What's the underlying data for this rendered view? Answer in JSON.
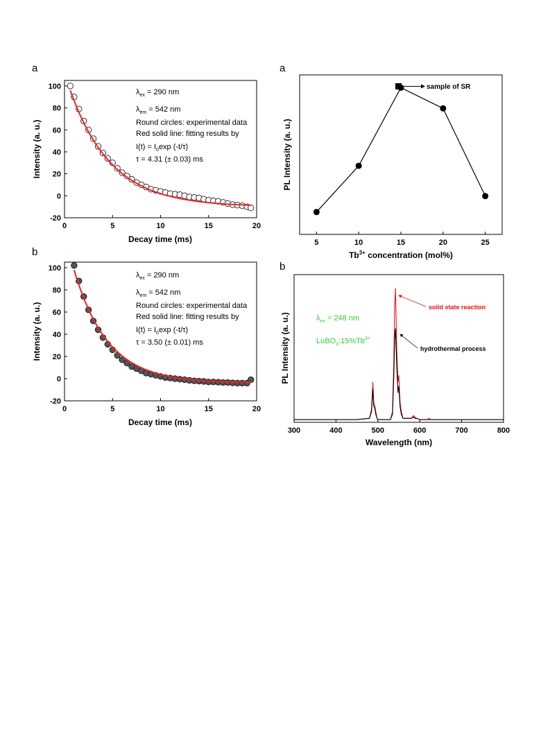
{
  "chart_data": [
    {
      "id": "decay-a",
      "panel_label": "a",
      "type": "scatter",
      "xlabel": "Decay time (ms)",
      "ylabel": "Intensity (a. u.)",
      "xlim": [
        0,
        20
      ],
      "ylim": [
        -20,
        105
      ],
      "xticks": [
        "0",
        "5",
        "10",
        "15",
        "20"
      ],
      "yticks": [
        "-20",
        "0",
        "20",
        "40",
        "60",
        "80",
        "100"
      ],
      "xtick_values": [
        0,
        5,
        10,
        15,
        20
      ],
      "ytick_values": [
        -20,
        0,
        20,
        40,
        60,
        80,
        100
      ],
      "grid": false,
      "annotations": [
        "λex = 290 nm",
        "λem = 542 nm",
        "Round circles: experimental data",
        "Red solid line: fitting results by",
        "I(t) = I0exp (-t/τ)",
        "τ = 4.31 (± 0.03) ms"
      ],
      "fit": {
        "model": "I(t) = I0exp (-t/τ)",
        "tau_ms": 4.31,
        "x_start": 0.6,
        "x_end": 19.4,
        "y_start": 96,
        "y_end": -10
      },
      "series": [
        {
          "name": "Round circles: experimental data",
          "color": "#ffffff",
          "stroke": "#333333",
          "x": [
            0.6,
            1.0,
            1.5,
            2.0,
            2.5,
            3.0,
            3.5,
            4.0,
            4.5,
            5.0,
            5.5,
            6.0,
            6.5,
            7.0,
            7.5,
            8.0,
            8.5,
            9.0,
            9.5,
            10.0,
            10.5,
            11.0,
            11.5,
            12.0,
            12.5,
            13.0,
            13.5,
            14.0,
            14.5,
            15.0,
            15.5,
            16.0,
            16.5,
            17.0,
            17.5,
            18.0,
            18.5,
            19.0,
            19.4
          ],
          "y": [
            100,
            90,
            79,
            68,
            60,
            52,
            45,
            39,
            34,
            30,
            25,
            21,
            18,
            15,
            12,
            10,
            8,
            6,
            5,
            4,
            3,
            2,
            1.5,
            1,
            0,
            -1,
            -1.5,
            -2,
            -3,
            -4,
            -4.5,
            -5,
            -6,
            -7,
            -8,
            -8.5,
            -9,
            -10,
            -11
          ]
        }
      ],
      "fit_color": "#ee2222"
    },
    {
      "id": "decay-b",
      "panel_label": "b",
      "type": "scatter",
      "xlabel": "Decay time (ms)",
      "ylabel": "Intensity (a. u.)",
      "xlim": [
        0,
        20
      ],
      "ylim": [
        -20,
        105
      ],
      "xticks": [
        "0",
        "5",
        "10",
        "15",
        "20"
      ],
      "yticks": [
        "-20",
        "0",
        "20",
        "40",
        "60",
        "80",
        "100"
      ],
      "xtick_values": [
        0,
        5,
        10,
        15,
        20
      ],
      "ytick_values": [
        -20,
        0,
        20,
        40,
        60,
        80,
        100
      ],
      "grid": false,
      "annotations": [
        "λex = 290 nm",
        "λem = 542 nm",
        "Round circles: experimental data",
        "Red solid line: fitting results by",
        "I(t) = I0exp (-t/τ)",
        "τ = 3.50 (± 0.01) ms"
      ],
      "fit": {
        "model": "I(t) = I0exp (-t/τ)",
        "tau_ms": 3.5,
        "x_start": 1.0,
        "x_end": 19.4,
        "y_start": 98,
        "y_end": -4
      },
      "series": [
        {
          "name": "Round circles: experimental data",
          "color": "#555555",
          "stroke": "#222222",
          "x": [
            1.0,
            1.5,
            2.0,
            2.5,
            3.0,
            3.5,
            4.0,
            4.5,
            5.0,
            5.5,
            6.0,
            6.5,
            7.0,
            7.5,
            8.0,
            8.5,
            9.0,
            9.5,
            10.0,
            10.5,
            11.0,
            11.5,
            12.0,
            12.5,
            13.0,
            13.5,
            14.0,
            14.5,
            15.0,
            15.5,
            16.0,
            16.5,
            17.0,
            17.5,
            18.0,
            18.5,
            19.0,
            19.4
          ],
          "y": [
            102,
            88,
            74,
            62,
            52,
            44,
            37,
            31,
            26,
            21,
            17,
            14,
            11,
            9,
            7,
            5,
            4,
            3,
            2,
            1,
            0.5,
            0,
            -0.5,
            -1,
            -1.5,
            -2,
            -2.2,
            -2.5,
            -3,
            -3,
            -3.2,
            -3.5,
            -3.5,
            -3.8,
            -4,
            -4,
            -4,
            -1
          ]
        }
      ],
      "fit_color": "#ee2222"
    },
    {
      "id": "concentration-a",
      "panel_label": "a",
      "type": "line",
      "xlabel": "Tb3+ concentration (mol%)",
      "ylabel": "PL Intensity (a. u.)",
      "xlim": [
        3,
        27
      ],
      "ylim": [
        0,
        1
      ],
      "xticks": [
        "5",
        "10",
        "15",
        "20",
        "25"
      ],
      "xtick_values": [
        5,
        10,
        15,
        20,
        25
      ],
      "yticks": [],
      "grid": false,
      "legend": {
        "label": "sample of SR",
        "position": "top-right"
      },
      "series": [
        {
          "name": "",
          "color": "#000000",
          "x": [
            5,
            10,
            15,
            20,
            25
          ],
          "y": [
            0.14,
            0.43,
            0.92,
            0.79,
            0.24
          ]
        }
      ],
      "marked_sample": {
        "x": 15,
        "label": "sample of SR"
      }
    },
    {
      "id": "spectrum-b",
      "panel_label": "b",
      "type": "line",
      "xlabel": "Wavelength (nm)",
      "ylabel": "PL Intensity (a. u.)",
      "xlim": [
        300,
        800
      ],
      "ylim": [
        0,
        1.1
      ],
      "xticks": [
        "300",
        "400",
        "500",
        "600",
        "700",
        "800"
      ],
      "xtick_values": [
        300,
        400,
        500,
        600,
        700,
        800
      ],
      "yticks": [],
      "grid": false,
      "annotations": [
        "λex = 248 nm",
        "LuBO3:15%Tb3+"
      ],
      "annotation_color": "#33cc33",
      "series": [
        {
          "name": "solid state reaction",
          "color": "#ee1111",
          "x": [
            300,
            450,
            480,
            485,
            488,
            490,
            493,
            495,
            498,
            500,
            530,
            535,
            538,
            540,
            542,
            545,
            548,
            550,
            553,
            556,
            560,
            580,
            585,
            588,
            592,
            600,
            618,
            622,
            626,
            700,
            800
          ],
          "y": [
            0.02,
            0.02,
            0.03,
            0.1,
            0.3,
            0.15,
            0.12,
            0.08,
            0.03,
            0.02,
            0.02,
            0.08,
            0.45,
            0.85,
            1.0,
            0.55,
            0.3,
            0.35,
            0.15,
            0.08,
            0.03,
            0.03,
            0.05,
            0.04,
            0.03,
            0.02,
            0.02,
            0.03,
            0.02,
            0.02,
            0.02
          ]
        },
        {
          "name": "hydrothermal process",
          "color": "#000000",
          "x": [
            300,
            450,
            480,
            485,
            488,
            490,
            493,
            495,
            498,
            500,
            530,
            535,
            538,
            540,
            542,
            545,
            548,
            550,
            553,
            556,
            560,
            580,
            585,
            588,
            592,
            600,
            618,
            622,
            626,
            700,
            800
          ],
          "y": [
            0.02,
            0.02,
            0.03,
            0.08,
            0.25,
            0.12,
            0.1,
            0.06,
            0.03,
            0.02,
            0.02,
            0.06,
            0.35,
            0.62,
            0.7,
            0.42,
            0.22,
            0.27,
            0.12,
            0.06,
            0.03,
            0.03,
            0.04,
            0.03,
            0.03,
            0.02,
            0.02,
            0.02,
            0.02,
            0.02,
            0.02
          ]
        }
      ]
    }
  ]
}
